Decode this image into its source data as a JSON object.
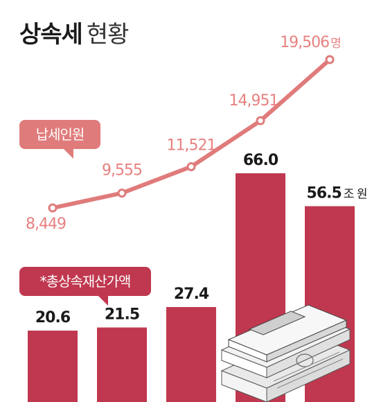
{
  "title": {
    "main": "상속세",
    "sub": "현황"
  },
  "colors": {
    "line": "#e07b7b",
    "line_label": "#e88080",
    "bar": "#c0384f",
    "bar_label": "#1a1a1a",
    "callout_line": "#e07b7b",
    "callout_bar": "#c0384f"
  },
  "chart_data": {
    "type": "bar+line",
    "categories": [
      "",
      "",
      "",
      "",
      ""
    ],
    "series": [
      {
        "name": "납세인원",
        "type": "line",
        "values": [
          8449,
          9555,
          11521,
          14951,
          19506
        ],
        "labels": [
          "8,449",
          "9,555",
          "11,521",
          "14,951",
          "19,506"
        ],
        "unit": "명"
      },
      {
        "name": "*총상속재산가액",
        "type": "bar",
        "values": [
          20.6,
          21.5,
          27.4,
          66.0,
          56.5
        ],
        "labels": [
          "20.6",
          "21.5",
          "27.4",
          "66.0",
          "56.5"
        ],
        "unit": "조 원"
      }
    ],
    "icon": "money-stack-icon"
  }
}
